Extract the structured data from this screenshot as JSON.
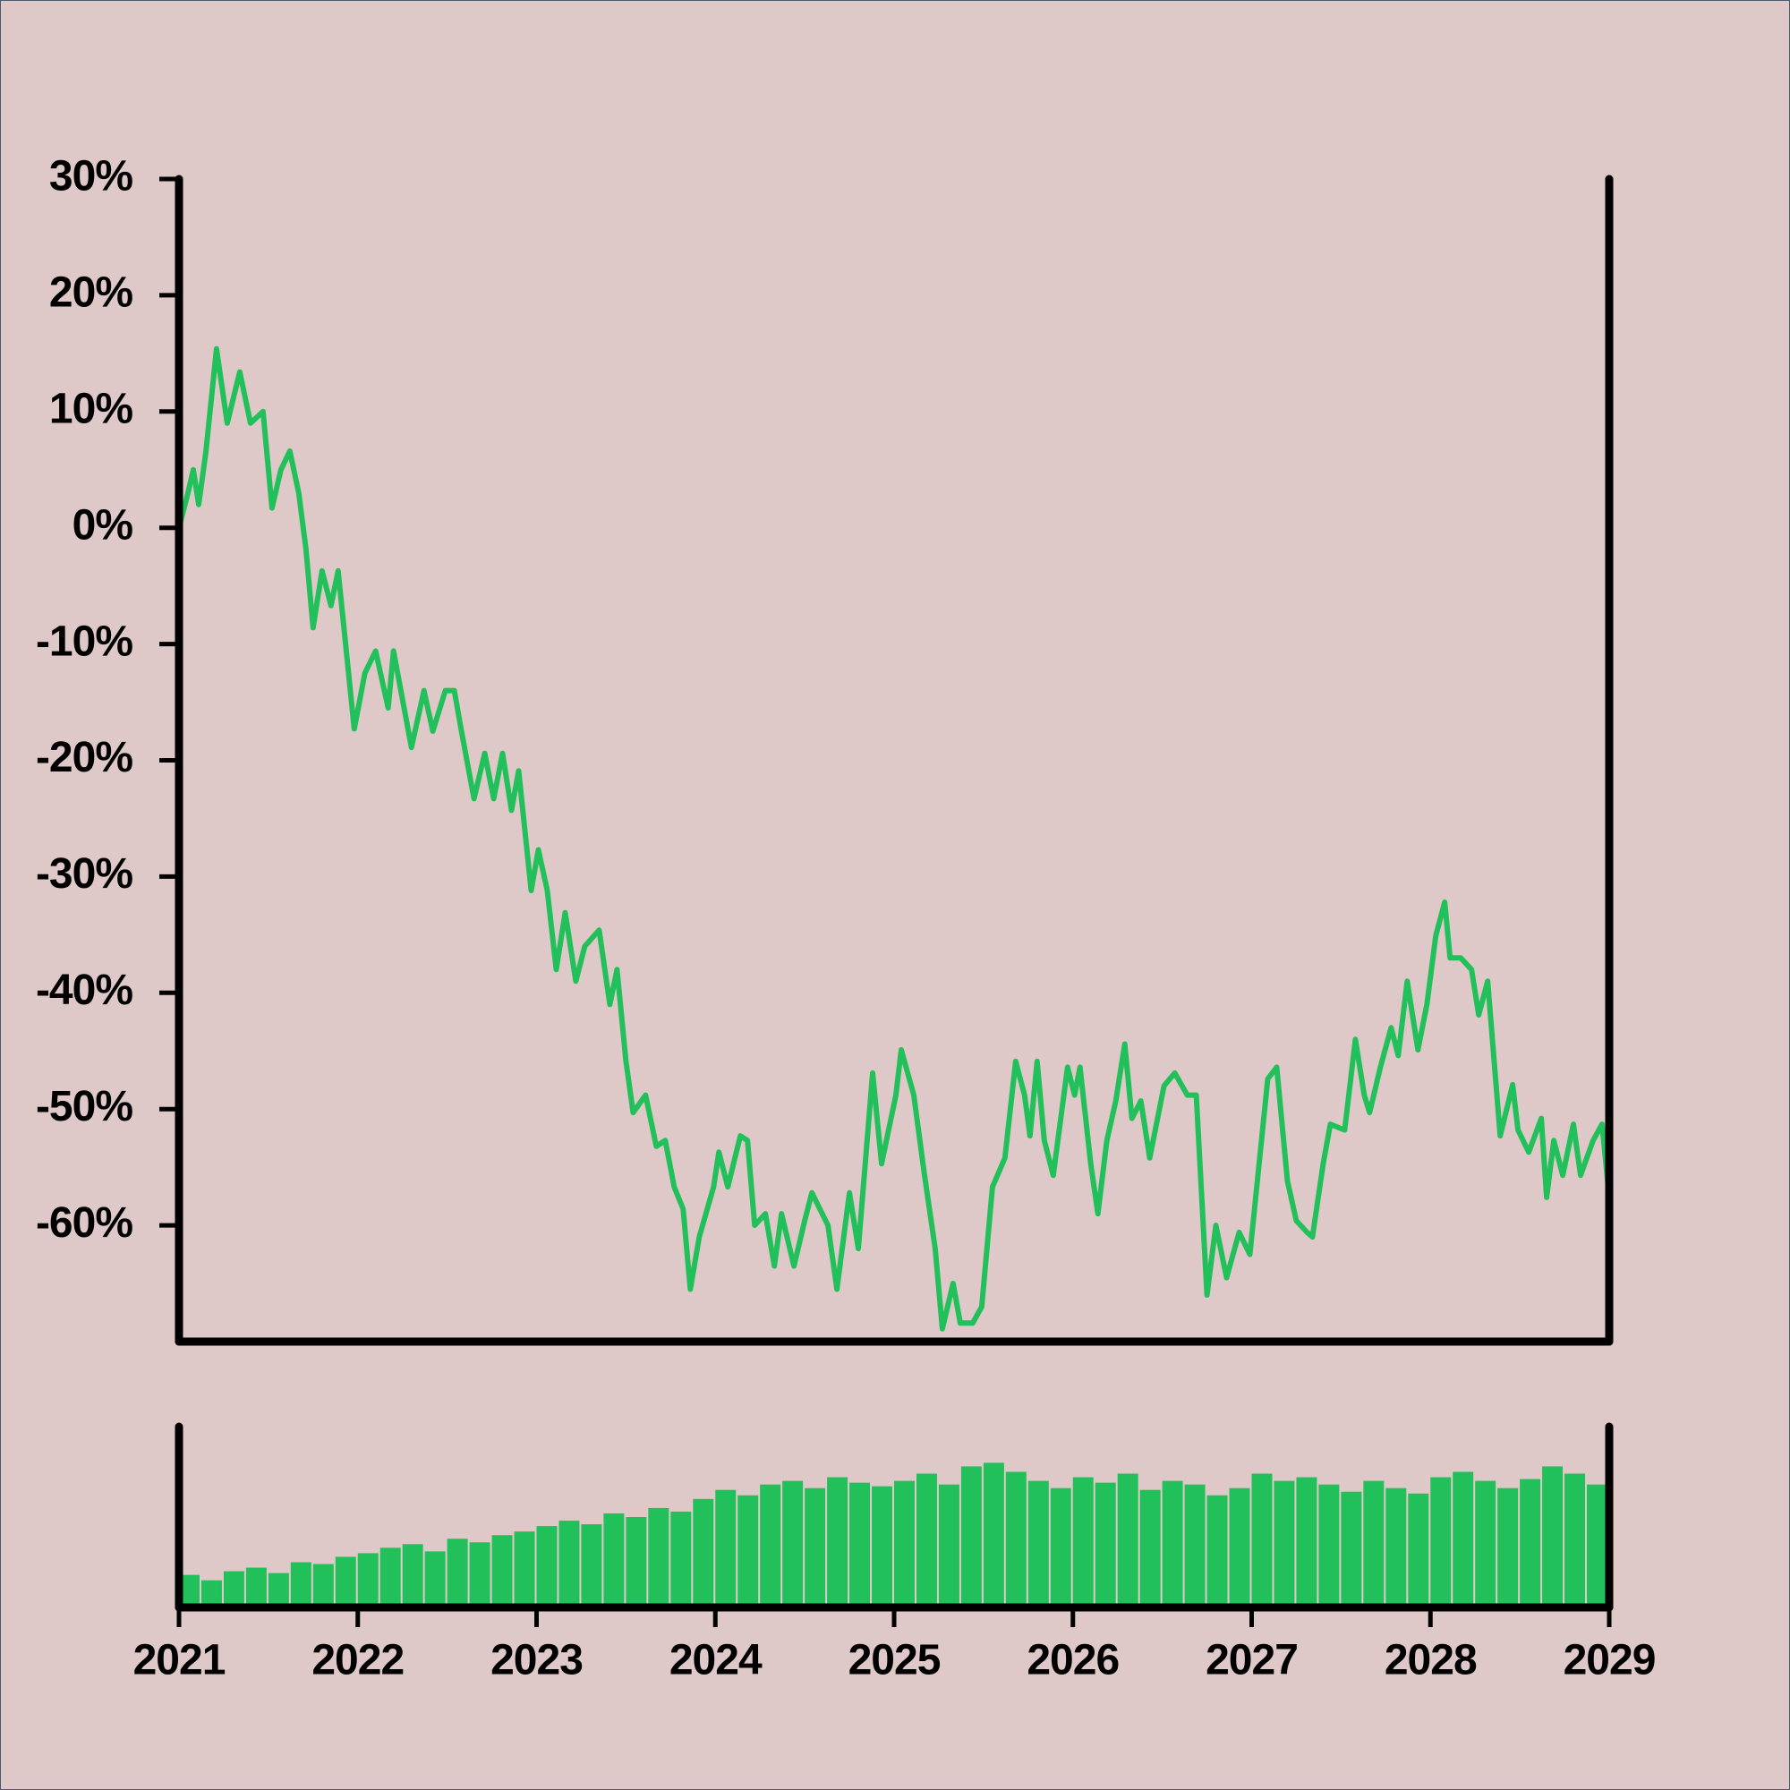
{
  "chart_data": [
    {
      "type": "line",
      "color": "#22c05a",
      "x": [
        2021.0,
        2021.05,
        2021.08,
        2021.11,
        2021.15,
        2021.21,
        2021.27,
        2021.34,
        2021.4,
        2021.47,
        2021.52,
        2021.57,
        2021.62,
        2021.67,
        2021.71,
        2021.75,
        2021.8,
        2021.85,
        2021.89,
        2021.98,
        2022.04,
        2022.1,
        2022.17,
        2022.2,
        2022.3,
        2022.37,
        2022.42,
        2022.49,
        2022.54,
        2022.58,
        2022.65,
        2022.71,
        2022.76,
        2022.81,
        2022.86,
        2022.9,
        2022.97,
        2023.01,
        2023.06,
        2023.11,
        2023.16,
        2023.22,
        2023.27,
        2023.35,
        2023.41,
        2023.45,
        2023.5,
        2023.54,
        2023.61,
        2023.67,
        2023.72,
        2023.77,
        2023.82,
        2023.86,
        2023.91,
        2023.99,
        2024.02,
        2024.07,
        2024.14,
        2024.18,
        2024.22,
        2024.28,
        2024.33,
        2024.37,
        2024.44,
        2024.5,
        2024.54,
        2024.63,
        2024.68,
        2024.75,
        2024.8,
        2024.88,
        2024.93,
        2025.01,
        2025.04,
        2025.11,
        2025.17,
        2025.23,
        2025.27,
        2025.33,
        2025.37,
        2025.44,
        2025.49,
        2025.55,
        2025.62,
        2025.68,
        2025.73,
        2025.76,
        2025.8,
        2025.84,
        2025.89,
        2025.97,
        2026.01,
        2026.04,
        2026.1,
        2026.14,
        2026.19,
        2026.24,
        2026.29,
        2026.33,
        2026.38,
        2026.43,
        2026.51,
        2026.57,
        2026.64,
        2026.69,
        2026.75,
        2026.8,
        2026.86,
        2026.93,
        2026.99,
        2027.09,
        2027.14,
        2027.2,
        2027.25,
        2027.31,
        2027.34,
        2027.4,
        2027.44,
        2027.52,
        2027.58,
        2027.63,
        2027.66,
        2027.72,
        2027.78,
        2027.82,
        2027.87,
        2027.93,
        2027.98,
        2028.03,
        2028.08,
        2028.11,
        2028.17,
        2028.23,
        2028.27,
        2028.32,
        2028.39,
        2028.46,
        2028.49,
        2028.55,
        2028.62,
        2028.65,
        2028.69,
        2028.74,
        2028.8,
        2028.84,
        2028.91,
        2028.96,
        2029.0
      ],
      "values": [
        0,
        3,
        5,
        2,
        6.5,
        15.4,
        9,
        13.4,
        9,
        10,
        1.7,
        5,
        6.6,
        3,
        -1.8,
        -8.6,
        -3.7,
        -6.7,
        -3.7,
        -17.3,
        -12.5,
        -10.6,
        -15.5,
        -10.6,
        -18.9,
        -14,
        -17.5,
        -14,
        -14,
        -17.5,
        -23.3,
        -19.4,
        -23.3,
        -19.4,
        -24.3,
        -20.9,
        -31.2,
        -27.7,
        -31.2,
        -38,
        -33.1,
        -39,
        -36,
        -34.6,
        -41,
        -38,
        -45.9,
        -50.3,
        -48.8,
        -53.2,
        -52.7,
        -56.7,
        -58.6,
        -65.5,
        -61,
        -56.7,
        -53.7,
        -56.7,
        -52.3,
        -52.7,
        -60,
        -59,
        -63.5,
        -59,
        -63.5,
        -59.6,
        -57.2,
        -60,
        -65.5,
        -57.2,
        -62,
        -46.9,
        -54.7,
        -48.8,
        -44.9,
        -48.8,
        -55.7,
        -62,
        -68.9,
        -65,
        -68.4,
        -68.4,
        -67,
        -56.7,
        -54.2,
        -45.9,
        -48.8,
        -52.3,
        -45.9,
        -52.7,
        -55.7,
        -46.4,
        -48.8,
        -46.4,
        -54.7,
        -59,
        -52.7,
        -49.3,
        -44.4,
        -50.8,
        -49.3,
        -54.2,
        -48,
        -46.9,
        -48.8,
        -48.8,
        -66,
        -60,
        -64.5,
        -60.6,
        -62.5,
        -47.4,
        -46.4,
        -56.2,
        -59.6,
        -60.6,
        -61,
        -54.7,
        -51.3,
        -51.8,
        -44,
        -48.8,
        -50.3,
        -46.4,
        -43,
        -45.4,
        -39,
        -44.9,
        -41,
        -35.1,
        -32.2,
        -37,
        -37,
        -38,
        -41.9,
        -39,
        -52.3,
        -47.9,
        -51.8,
        -53.7,
        -50.8,
        -57.6,
        -52.7,
        -55.7,
        -51.3,
        -55.7,
        -52.7,
        -51.3,
        -57.6
      ],
      "xlim": [
        2021,
        2029
      ],
      "ylim": [
        -70,
        30
      ],
      "yticks": [
        {
          "value": 30,
          "label": "30%"
        },
        {
          "value": 20,
          "label": "20%"
        },
        {
          "value": 10,
          "label": "10%"
        },
        {
          "value": 0,
          "label": "0%"
        },
        {
          "value": -10,
          "label": "-10%"
        },
        {
          "value": -20,
          "label": "-20%"
        },
        {
          "value": -30,
          "label": "-30%"
        },
        {
          "value": -40,
          "label": "-40%"
        },
        {
          "value": -50,
          "label": "-50%"
        },
        {
          "value": -60,
          "label": "-60%"
        }
      ]
    },
    {
      "type": "bar",
      "color": "#22c05a",
      "x": [
        2021.0,
        2021.125,
        2021.25,
        2021.375,
        2021.5,
        2021.625,
        2021.75,
        2021.875,
        2022.0,
        2022.125,
        2022.25,
        2022.375,
        2022.5,
        2022.625,
        2022.75,
        2022.875,
        2023.0,
        2023.125,
        2023.25,
        2023.375,
        2023.5,
        2023.625,
        2023.75,
        2023.875,
        2024.0,
        2024.125,
        2024.25,
        2024.375,
        2024.5,
        2024.625,
        2024.75,
        2024.875,
        2025.0,
        2025.125,
        2025.25,
        2025.375,
        2025.5,
        2025.625,
        2025.75,
        2025.875,
        2026.0,
        2026.125,
        2026.25,
        2026.375,
        2026.5,
        2026.625,
        2026.75,
        2026.875,
        2027.0,
        2027.125,
        2027.25,
        2027.375,
        2027.5,
        2027.625,
        2027.75,
        2027.875,
        2028.0,
        2028.125,
        2028.25,
        2028.375,
        2028.5,
        2028.625,
        2028.75,
        2028.875
      ],
      "values": [
        18,
        15,
        20,
        22,
        19,
        25,
        24,
        28,
        30,
        33,
        35,
        31,
        38,
        36,
        40,
        42,
        45,
        48,
        46,
        52,
        50,
        55,
        53,
        60,
        65,
        62,
        68,
        70,
        66,
        72,
        69,
        67,
        70,
        74,
        68,
        78,
        80,
        75,
        70,
        66,
        72,
        69,
        74,
        65,
        70,
        68,
        62,
        66,
        74,
        70,
        72,
        68,
        64,
        70,
        66,
        63,
        72,
        75,
        70,
        66,
        71,
        78,
        74,
        68
      ],
      "xlim": [
        2021,
        2029
      ],
      "ylim": [
        0,
        100
      ],
      "xticks": [
        2021,
        2022,
        2023,
        2024,
        2025,
        2026,
        2027,
        2028,
        2029
      ]
    }
  ]
}
